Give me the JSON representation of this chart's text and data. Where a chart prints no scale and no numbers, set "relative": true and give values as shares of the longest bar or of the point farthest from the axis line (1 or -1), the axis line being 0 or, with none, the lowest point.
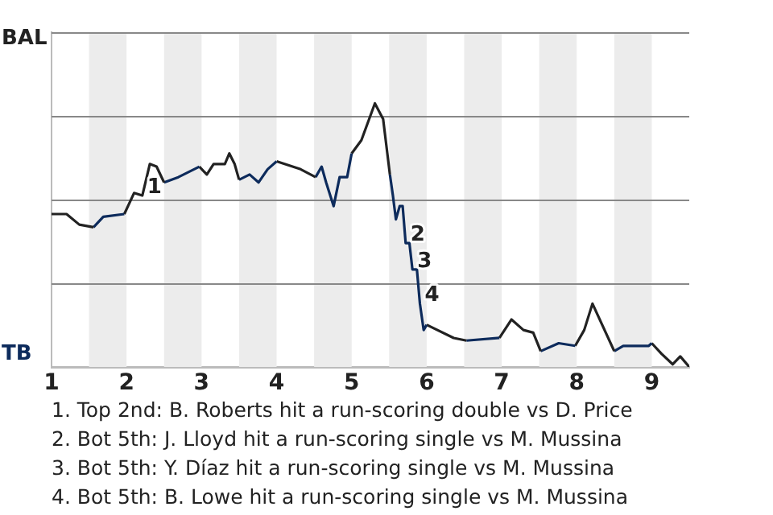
{
  "chart_data": {
    "type": "line",
    "relative": true,
    "xlim": [
      1,
      9.5
    ],
    "xticks": [
      1,
      2,
      3,
      4,
      5,
      6,
      7,
      8,
      9
    ],
    "grid": "y",
    "marker": "none",
    "line_style": "solid",
    "series": [
      {
        "color": "#222222",
        "x": [
          1,
          1.2,
          1.37,
          1.56
        ],
        "values": [
          0.58,
          0.58,
          0.54,
          0.53
        ]
      },
      {
        "color": "#0d2b5c",
        "x": [
          1.56,
          1.69,
          1.97
        ],
        "values": [
          0.53,
          0.57,
          0.58
        ]
      },
      {
        "color": "#222222",
        "x": [
          1.97,
          2.1,
          2.21,
          2.31,
          2.4,
          2.5
        ],
        "values": [
          0.58,
          0.66,
          0.65,
          0.77,
          0.76,
          0.7
        ]
      },
      {
        "color": "#0d2b5c",
        "x": [
          2.5,
          2.69,
          2.97
        ],
        "values": [
          0.7,
          0.72,
          0.76
        ]
      },
      {
        "color": "#222222",
        "x": [
          2.97,
          3.07,
          3.16,
          3.31,
          3.37,
          3.44,
          3.5
        ],
        "values": [
          0.76,
          0.73,
          0.77,
          0.77,
          0.81,
          0.77,
          0.71
        ]
      },
      {
        "color": "#0d2b5c",
        "x": [
          3.5,
          3.64,
          3.76,
          3.88,
          4.0
        ],
        "values": [
          0.71,
          0.73,
          0.7,
          0.75,
          0.78
        ]
      },
      {
        "color": "#222222",
        "x": [
          4.0,
          4.32,
          4.52
        ],
        "values": [
          0.78,
          0.75,
          0.72
        ]
      },
      {
        "color": "#0d2b5c",
        "x": [
          4.52,
          4.6,
          4.66,
          4.76,
          4.84,
          4.94,
          5.0
        ],
        "values": [
          0.72,
          0.76,
          0.7,
          0.61,
          0.72,
          0.72,
          0.81
        ]
      },
      {
        "color": "#222222",
        "x": [
          5.0,
          5.13,
          5.31,
          5.42,
          5.51
        ],
        "values": [
          0.81,
          0.86,
          1,
          0.94,
          0.73
        ]
      },
      {
        "color": "#0d2b5c",
        "x": [
          5.51,
          5.55,
          5.59,
          5.64,
          5.68,
          5.72,
          5.77,
          5.81,
          5.87,
          5.91,
          5.96,
          6.0
        ],
        "values": [
          0.73,
          0.65,
          0.56,
          0.61,
          0.61,
          0.47,
          0.47,
          0.37,
          0.37,
          0.24,
          0.14,
          0.16
        ]
      },
      {
        "color": "#222222",
        "x": [
          6.0,
          6.36,
          6.53
        ],
        "values": [
          0.16,
          0.11,
          0.1
        ]
      },
      {
        "color": "#0d2b5c",
        "x": [
          6.53,
          6.97
        ],
        "values": [
          0.1,
          0.11
        ]
      },
      {
        "color": "#222222",
        "x": [
          6.97,
          7.13,
          7.29,
          7.42,
          7.52
        ],
        "values": [
          0.11,
          0.18,
          0.14,
          0.13,
          0.06
        ]
      },
      {
        "color": "#0d2b5c",
        "x": [
          7.52,
          7.76,
          7.98
        ],
        "values": [
          0.06,
          0.09,
          0.08
        ]
      },
      {
        "color": "#222222",
        "x": [
          7.98,
          8.1,
          8.21,
          8.5
        ],
        "values": [
          0.08,
          0.14,
          0.24,
          0.06
        ]
      },
      {
        "color": "#0d2b5c",
        "x": [
          8.5,
          8.62,
          8.96,
          9.0
        ],
        "values": [
          0.06,
          0.08,
          0.08,
          0.09
        ]
      },
      {
        "color": "#222222",
        "x": [
          9.0,
          9.13,
          9.28,
          9.38,
          9.5
        ],
        "values": [
          0.09,
          0.05,
          0.01,
          0.04,
          0
        ]
      }
    ],
    "bands": [
      {
        "axis": "x",
        "from": 1.5,
        "to": 2,
        "label": null,
        "color": "#ececec"
      },
      {
        "axis": "x",
        "from": 2.5,
        "to": 3,
        "label": null,
        "color": "#ececec"
      },
      {
        "axis": "x",
        "from": 3.5,
        "to": 4,
        "label": null,
        "color": "#ececec"
      },
      {
        "axis": "x",
        "from": 4.5,
        "to": 5,
        "label": null,
        "color": "#ececec"
      },
      {
        "axis": "x",
        "from": 5.5,
        "to": 6,
        "label": null,
        "color": "#ececec"
      },
      {
        "axis": "x",
        "from": 6.5,
        "to": 7,
        "label": null,
        "color": "#ececec"
      },
      {
        "axis": "x",
        "from": 7.5,
        "to": 8,
        "label": null,
        "color": "#ececec"
      },
      {
        "axis": "x",
        "from": 8.5,
        "to": 9,
        "label": null,
        "color": "#ececec"
      }
    ],
    "annotations": [
      "BAL",
      "TB",
      {
        "text": "1",
        "x": 2.21,
        "y": 0.65
      },
      {
        "text": "2",
        "x": 5.72,
        "y": 0.47
      },
      {
        "text": "3",
        "x": 5.81,
        "y": 0.37
      },
      {
        "text": "4",
        "x": 5.91,
        "y": 0.24
      },
      "1. Top 2nd: B. Roberts hit a run-scoring double vs D. Price",
      "2. Bot 5th: J. Lloyd hit a run-scoring single vs M. Mussina",
      "3. Bot 5th: Y. Díaz hit a run-scoring single vs M. Mussina",
      "4. Bot 5th: B. Lowe hit a run-scoring single vs M. Mussina"
    ]
  }
}
